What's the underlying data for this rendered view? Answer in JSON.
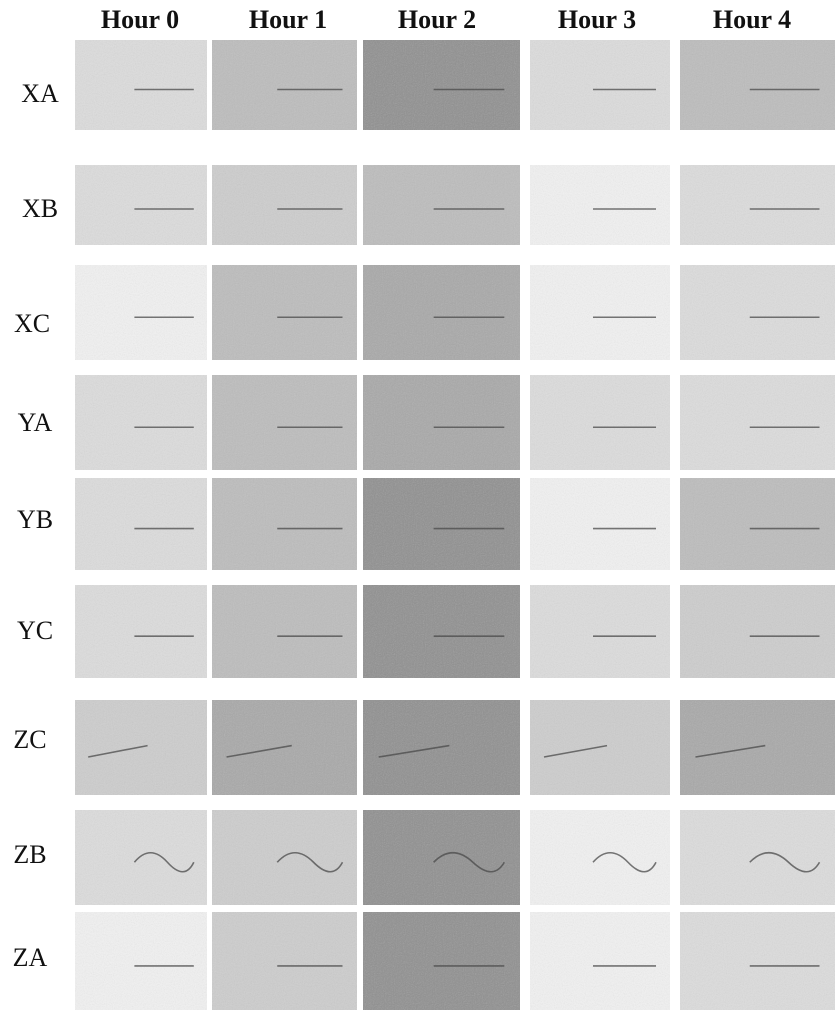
{
  "columns": [
    "Hour 0",
    "Hour 1",
    "Hour 2",
    "Hour 3",
    "Hour 4"
  ],
  "rows": [
    "XA",
    "XB",
    "XC",
    "YA",
    "YB",
    "YC",
    "ZC",
    "ZB",
    "ZA"
  ]
}
